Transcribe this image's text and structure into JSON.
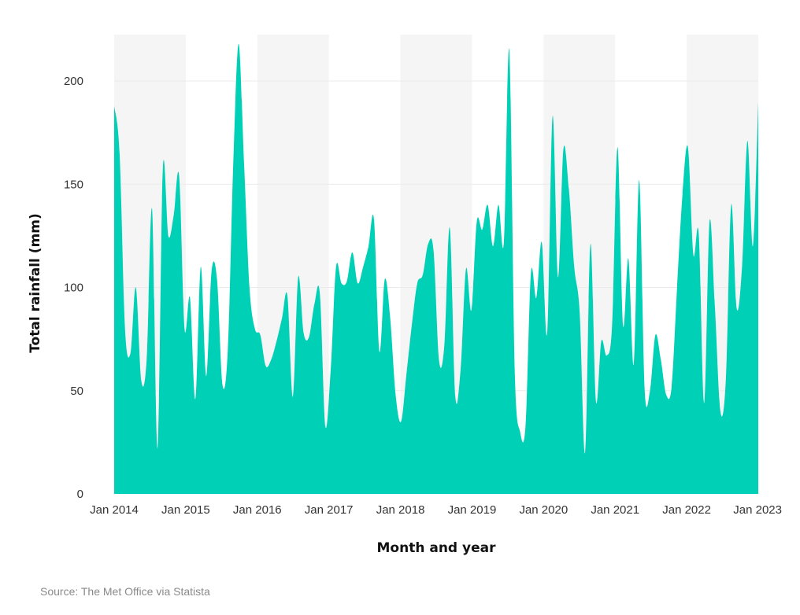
{
  "chart_data": {
    "type": "area",
    "xlabel": "Month and year",
    "ylabel": "Total rainfall (mm)",
    "ylim": [
      0,
      225
    ],
    "y_ticks": [
      0,
      50,
      100,
      150,
      200
    ],
    "x_tick_labels": [
      "Jan 2014",
      "Jan 2015",
      "Jan 2016",
      "Jan 2017",
      "Jan 2018",
      "Jan 2019",
      "Jan 2020",
      "Jan 2021",
      "Jan 2022",
      "Jan 2023"
    ],
    "x_start": "Jan 2014",
    "x_end": "Jan 2023",
    "alternating_year_bands": true,
    "grid": true,
    "colors": {
      "area": "#00d0b5",
      "band": "#f5f5f5",
      "grid": "#ebebeb"
    },
    "series": [
      {
        "values": [
          188,
          165,
          80,
          68,
          100,
          55,
          65,
          138,
          22,
          158,
          125,
          135,
          154,
          80,
          95,
          46,
          110,
          57,
          108,
          104,
          53,
          70,
          160,
          218,
          160,
          100,
          80,
          77,
          62,
          65,
          74,
          85,
          96,
          47,
          105,
          78,
          76,
          92,
          97,
          33,
          60,
          110,
          102,
          103,
          117,
          102,
          110,
          120,
          133,
          69,
          104,
          85,
          48,
          35,
          58,
          82,
          102,
          106,
          121,
          118,
          65,
          72,
          129,
          48,
          60,
          109,
          89,
          132,
          128,
          140,
          120,
          140,
          122,
          215,
          60,
          30,
          33,
          107,
          95,
          122,
          78,
          183,
          105,
          167,
          148,
          110,
          88,
          20,
          121,
          45,
          74,
          67,
          82,
          168,
          82,
          114,
          63,
          152,
          51,
          50,
          77,
          65,
          48,
          52,
          100,
          145,
          168,
          116,
          126,
          44,
          132,
          90,
          40,
          55,
          140,
          90,
          110,
          171,
          120,
          190
        ]
      }
    ]
  },
  "footer": {
    "source": "Source: The Met Office via Statista"
  }
}
